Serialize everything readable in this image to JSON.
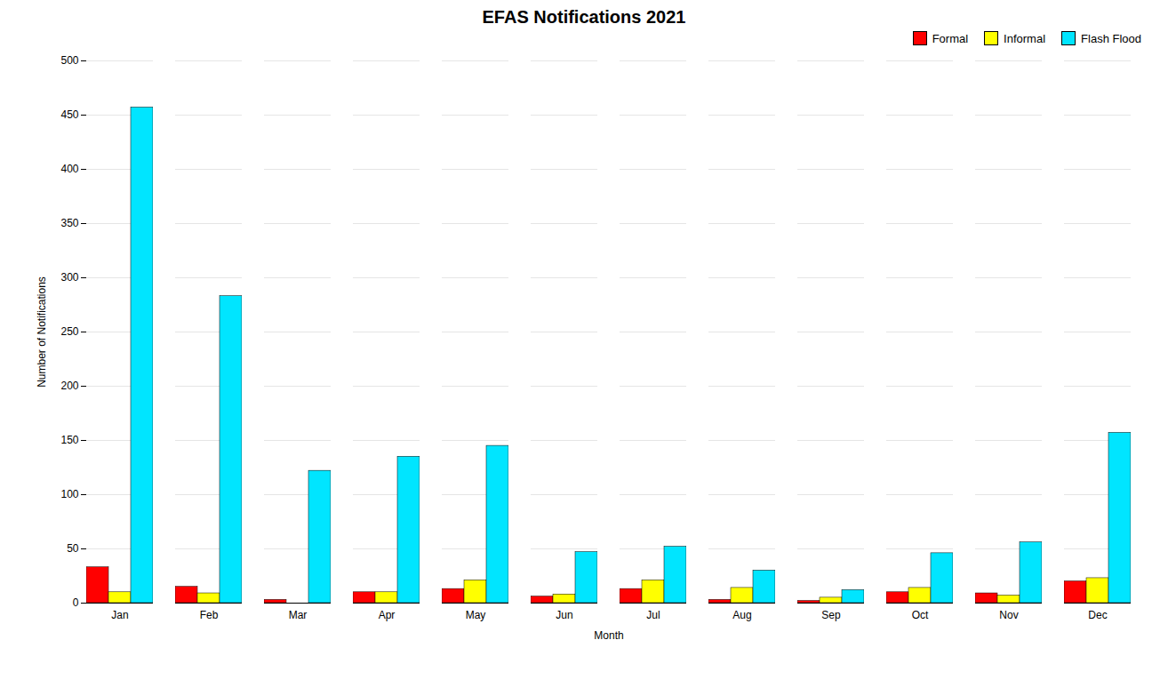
{
  "chart_data": {
    "type": "bar",
    "title": "EFAS Notifications 2021",
    "xlabel": "Month",
    "ylabel": "Number of Notifications",
    "categories": [
      "Jan",
      "Feb",
      "Mar",
      "Apr",
      "May",
      "Jun",
      "Jul",
      "Aug",
      "Sep",
      "Oct",
      "Nov",
      "Dec"
    ],
    "series": [
      {
        "name": "Formal",
        "color": "#ff0000",
        "values": [
          33,
          15,
          3,
          10,
          13,
          6,
          13,
          3,
          2,
          10,
          9,
          20
        ]
      },
      {
        "name": "Informal",
        "color": "#ffff00",
        "values": [
          10,
          9,
          0,
          10,
          21,
          8,
          21,
          14,
          5,
          14,
          7,
          23
        ]
      },
      {
        "name": "Flash Flood",
        "color": "#00e5ff",
        "values": [
          457,
          283,
          122,
          135,
          145,
          47,
          52,
          30,
          12,
          46,
          56,
          157
        ]
      }
    ],
    "ylim": [
      0,
      500
    ],
    "yticks": [
      0,
      50,
      100,
      150,
      200,
      250,
      300,
      350,
      400,
      450,
      500
    ],
    "grid": true,
    "legend": "upper right"
  }
}
